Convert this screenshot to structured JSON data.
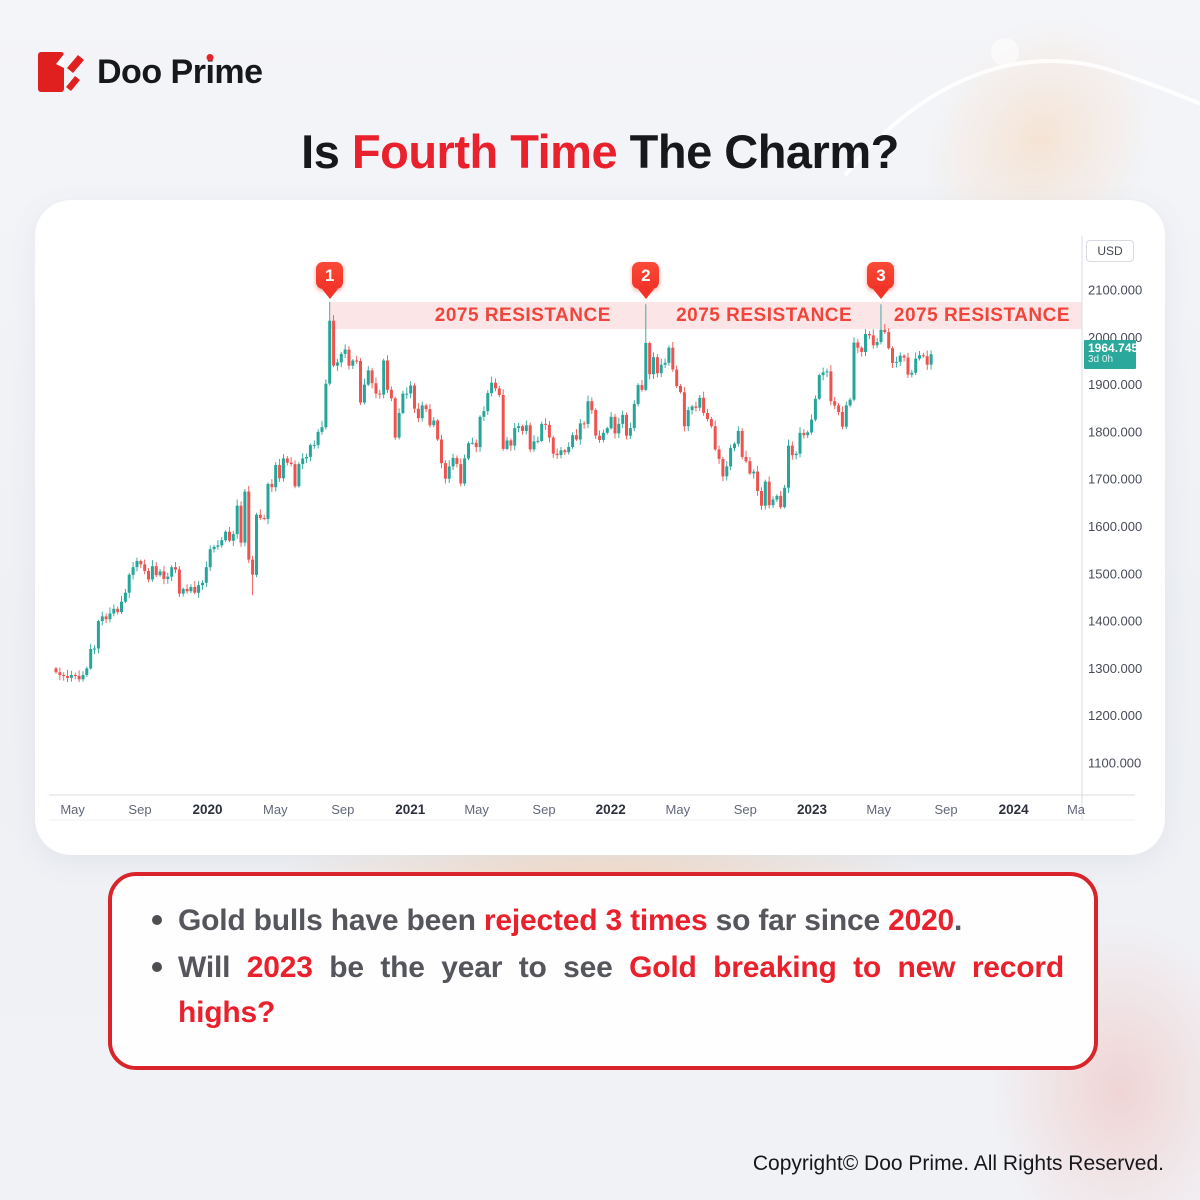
{
  "logo": {
    "brand_pre": "Doo Pr",
    "brand_i": "i",
    "brand_post": "me"
  },
  "title": {
    "part1": "Is ",
    "part2": "Fourth Time",
    "part3": " The Charm?"
  },
  "chart_data": {
    "type": "candlestick",
    "instrument": "Gold",
    "timeframe": "weekly",
    "price_axis": {
      "currency_label": "USD",
      "ticks": [
        "2100.000",
        "2000.000",
        "1900.000",
        "1800.000",
        "1700.000",
        "1600.000",
        "1500.000",
        "1400.000",
        "1300.000",
        "1200.000",
        "1100.000"
      ],
      "range_top": 2170,
      "range_bottom": 1030
    },
    "time_axis": {
      "ticks": [
        {
          "label": "May",
          "week": 4.3,
          "bold": false
        },
        {
          "label": "Sep",
          "week": 21.8,
          "bold": false
        },
        {
          "label": "2020",
          "week": 39.3,
          "bold": true
        },
        {
          "label": "May",
          "week": 56.9,
          "bold": false
        },
        {
          "label": "Sep",
          "week": 74.4,
          "bold": false
        },
        {
          "label": "2021",
          "week": 91.9,
          "bold": true
        },
        {
          "label": "May",
          "week": 109.1,
          "bold": false
        },
        {
          "label": "Sep",
          "week": 126.6,
          "bold": false
        },
        {
          "label": "2022",
          "week": 143.9,
          "bold": true
        },
        {
          "label": "May",
          "week": 161.3,
          "bold": false
        },
        {
          "label": "Sep",
          "week": 178.8,
          "bold": false
        },
        {
          "label": "2023",
          "week": 196.1,
          "bold": true
        },
        {
          "label": "May",
          "week": 213.4,
          "bold": false
        },
        {
          "label": "Sep",
          "week": 230.9,
          "bold": false
        },
        {
          "label": "2024",
          "week": 248.4,
          "bold": true
        },
        {
          "label": "Ma",
          "week": 264.6,
          "bold": false
        }
      ]
    },
    "resistance": {
      "price": 2075,
      "band_bottom_price": 2018,
      "label": "2075 RESISTANCE",
      "label_centers_week": [
        121.1,
        183.7,
        240.2
      ],
      "band_start_week": 71
    },
    "markers": [
      {
        "label": "1",
        "week": 71
      },
      {
        "label": "2",
        "week": 153
      },
      {
        "label": "3",
        "week": 214
      }
    ],
    "current_price": {
      "value": "1964.745",
      "countdown": "3d 0h",
      "price": 1964.745
    },
    "colors": {
      "bull": "#26a69a",
      "bear": "#ef5350",
      "band_fill": "#fce3e4",
      "band_text": "#f0453b",
      "marker": "#f8402f"
    },
    "weekly_closes": [
      1292,
      1286,
      1284,
      1280,
      1286,
      1284,
      1277,
      1286,
      1300,
      1341,
      1342,
      1400,
      1410,
      1404,
      1416,
      1426,
      1419,
      1441,
      1460,
      1498,
      1514,
      1527,
      1520,
      1506,
      1488,
      1516,
      1497,
      1505,
      1489,
      1494,
      1514,
      1509,
      1458,
      1468,
      1463,
      1472,
      1460,
      1476,
      1481,
      1514,
      1552,
      1557,
      1560,
      1571,
      1589,
      1570,
      1584,
      1644,
      1566,
      1674,
      1530,
      1498,
      1625,
      1618,
      1616,
      1690,
      1683,
      1730,
      1702,
      1744,
      1735,
      1732,
      1685,
      1732,
      1744,
      1747,
      1772,
      1772,
      1800,
      1810,
      1902,
      2035,
      1940,
      1947,
      1965,
      1974,
      1940,
      1951,
      1950,
      1862,
      1900,
      1930,
      1903,
      1881,
      1879,
      1951,
      1889,
      1871,
      1788,
      1840,
      1881,
      1881,
      1898,
      1849,
      1829,
      1856,
      1848,
      1814,
      1824,
      1784,
      1734,
      1701,
      1727,
      1745,
      1732,
      1691,
      1744,
      1776,
      1777,
      1768,
      1832,
      1844,
      1882,
      1904,
      1892,
      1878,
      1764,
      1782,
      1771,
      1808,
      1812,
      1802,
      1814,
      1763,
      1780,
      1781,
      1817,
      1815,
      1788,
      1754,
      1751,
      1761,
      1757,
      1768,
      1793,
      1784,
      1818,
      1817,
      1865,
      1846,
      1792,
      1783,
      1798,
      1808,
      1832,
      1797,
      1817,
      1836,
      1792,
      1808,
      1859,
      1899,
      1889,
      1988,
      1922,
      1958,
      1924,
      1942,
      1946,
      1978,
      1932,
      1897,
      1884,
      1812,
      1846,
      1854,
      1851,
      1872,
      1840,
      1827,
      1812,
      1763,
      1743,
      1706,
      1727,
      1766,
      1775,
      1802,
      1747,
      1738,
      1712,
      1716,
      1675,
      1644,
      1695,
      1645,
      1657,
      1665,
      1641,
      1682,
      1771,
      1751,
      1754,
      1798,
      1793,
      1799,
      1826,
      1870,
      1920,
      1926,
      1928,
      1865,
      1856,
      1842,
      1811,
      1856,
      1868,
      1989,
      1978,
      1969,
      2007,
      2004,
      1983,
      1990,
      2016,
      2011,
      1977,
      1946,
      1948,
      1961,
      1957,
      1921,
      1925,
      1955,
      1962,
      1960,
      1942,
      1964
    ],
    "wick_overrides": {
      "51": {
        "low": 1455
      },
      "71": {
        "high": 2075
      },
      "153": {
        "high": 2070
      },
      "214": {
        "high": 2070
      }
    }
  },
  "callout": {
    "bullets": [
      [
        {
          "text": "Gold bulls have been ",
          "red": false
        },
        {
          "text": "rejected 3 times",
          "red": true
        },
        {
          "text": " so far since ",
          "red": false
        },
        {
          "text": "2020",
          "red": true
        },
        {
          "text": ".",
          "red": false
        }
      ],
      [
        {
          "text": "Will ",
          "red": false
        },
        {
          "text": "2023",
          "red": true
        },
        {
          "text": " be the year to see ",
          "red": false
        },
        {
          "text": "Gold breaking to new record highs?",
          "red": true
        }
      ]
    ]
  },
  "footer": {
    "copyright": "Copyright© Doo Prime. All Rights Reserved."
  }
}
